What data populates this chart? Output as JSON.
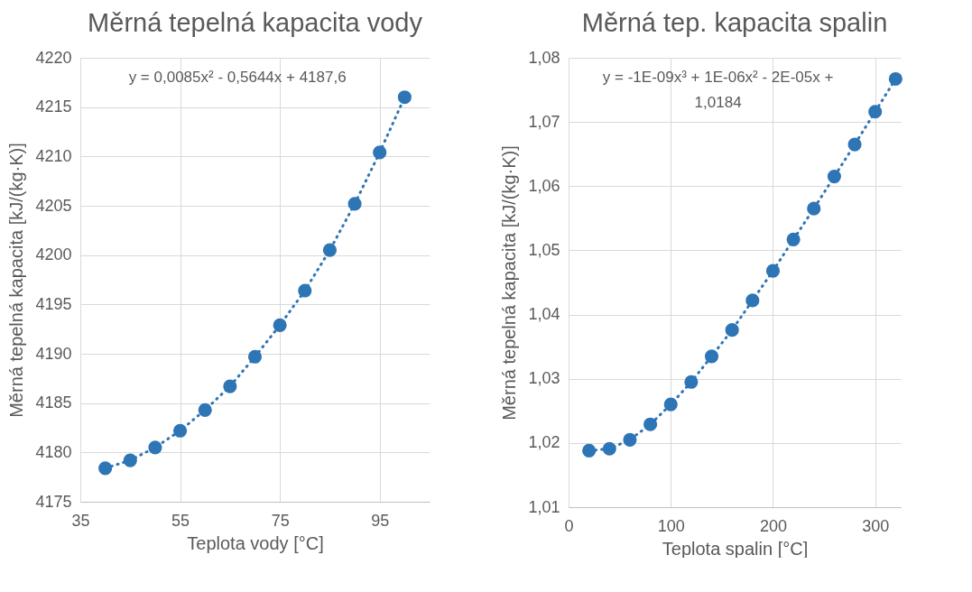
{
  "chart_data": [
    {
      "type": "scatter",
      "title": "Měrná tepelná kapacita vody",
      "xlabel": "Teplota vody [°C]",
      "ylabel": "Měrná tepelná kapacita [kJ/(kg·K)]",
      "xlim": [
        35,
        105
      ],
      "xticks": [
        35,
        55,
        75,
        95
      ],
      "ylim": [
        4175,
        4220
      ],
      "yticks": [
        4175,
        4180,
        4185,
        4190,
        4195,
        4200,
        4205,
        4210,
        4215,
        4220
      ],
      "grid": true,
      "annotations": [
        "y = 0,0085x² - 0,5644x + 4187,6"
      ],
      "series": [
        {
          "type": "line",
          "line_style": "dotted",
          "color": "#2e75b6",
          "x": [
            40,
            45,
            50,
            55,
            60,
            65,
            70,
            75,
            80,
            85,
            90,
            95,
            100
          ],
          "values": [
            4178.4,
            4179.2,
            4180.5,
            4182.2,
            4184.3,
            4186.7,
            4189.7,
            4192.9,
            4196.4,
            4200.5,
            4205.2,
            4210.4,
            4216.0
          ]
        },
        {
          "marker": "circle",
          "color": "#2e75b6",
          "x": [
            40,
            45,
            50,
            55,
            60,
            65,
            70,
            75,
            80,
            85,
            90,
            95,
            100
          ],
          "values": [
            4178.4,
            4179.2,
            4180.5,
            4182.2,
            4184.3,
            4186.7,
            4189.7,
            4192.9,
            4196.4,
            4200.5,
            4205.2,
            4210.4,
            4216.0
          ]
        }
      ]
    },
    {
      "type": "scatter",
      "title": "Měrná tep. kapacita spalin",
      "xlabel": "Teplota spalin [°C]",
      "ylabel": "Měrná tepelná kapacita [kJ/(kg·K)]",
      "xlim": [
        0,
        325
      ],
      "xticks": [
        0,
        100,
        200,
        300
      ],
      "ylim": [
        1.01,
        1.08
      ],
      "yticks": [
        {
          "value": 1.01,
          "label": "1,01"
        },
        {
          "value": 1.02,
          "label": "1,02"
        },
        {
          "value": 1.03,
          "label": "1,03"
        },
        {
          "value": 1.04,
          "label": "1,04"
        },
        {
          "value": 1.05,
          "label": "1,05"
        },
        {
          "value": 1.06,
          "label": "1,06"
        },
        {
          "value": 1.07,
          "label": "1,07"
        },
        {
          "value": 1.08,
          "label": "1,08"
        }
      ],
      "grid": true,
      "annotations": [
        "y = -1E-09x³ + 1E-06x² - 2E-05x + 1,0184"
      ],
      "series": [
        {
          "type": "line",
          "line_style": "dotted",
          "color": "#2e75b6",
          "x": [
            20,
            40,
            60,
            80,
            100,
            120,
            140,
            160,
            180,
            200,
            220,
            240,
            260,
            280,
            300,
            320
          ],
          "values": [
            1.0188,
            1.0191,
            1.0205,
            1.0229,
            1.026,
            1.0295,
            1.0335,
            1.0376,
            1.0422,
            1.0468,
            1.0517,
            1.0565,
            1.0615,
            1.0665,
            1.0716,
            1.0767
          ]
        },
        {
          "marker": "circle",
          "color": "#2e75b6",
          "x": [
            20,
            40,
            60,
            80,
            100,
            120,
            140,
            160,
            180,
            200,
            220,
            240,
            260,
            280,
            300,
            320
          ],
          "values": [
            1.0188,
            1.0191,
            1.0205,
            1.0229,
            1.026,
            1.0295,
            1.0335,
            1.0376,
            1.0422,
            1.0468,
            1.0517,
            1.0565,
            1.0615,
            1.0665,
            1.0716,
            1.0767
          ]
        }
      ]
    }
  ]
}
